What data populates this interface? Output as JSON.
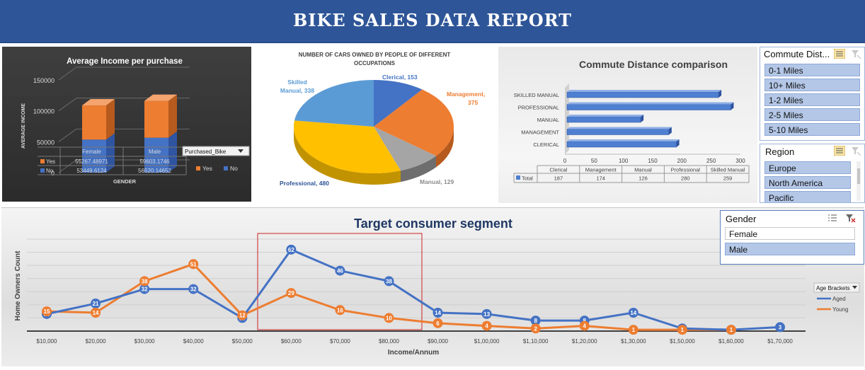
{
  "header": {
    "title": "BIKE SALES DATA REPORT"
  },
  "colors": {
    "banner": "#2e5597",
    "orange": "#ed7d31",
    "blue": "#4472c4",
    "gray": "#a5a5a5",
    "gold": "#ffc000",
    "lightblue": "#5b9bd5"
  },
  "chart_data": [
    {
      "id": "income",
      "type": "bar",
      "stacked": true,
      "title": "Average Income per purchase",
      "ylabel": "AVERAGE INCOME",
      "xlabel": "GENDER",
      "ylim": [
        0,
        150000
      ],
      "yticks": [
        "0",
        "50000",
        "100000",
        "150000"
      ],
      "categories": [
        "Female",
        "Male"
      ],
      "series": [
        {
          "name": "Yes",
          "values": [
            55267.48971,
            59603.1746
          ]
        },
        {
          "name": "No",
          "values": [
            53449.6124,
            56520.14652
          ]
        }
      ],
      "table": [
        {
          "label": "Yes",
          "values": [
            "55267.48971",
            "59603.1746"
          ]
        },
        {
          "label": "No",
          "values": [
            "53449.6124",
            "56520.14652"
          ]
        }
      ],
      "legend_title": "Purchased_Bike",
      "legend": [
        "Yes",
        "No"
      ]
    },
    {
      "id": "cars",
      "type": "pie",
      "title": [
        "NUMBER OF CARS OWNED BY PEOPLE OF DIFFERENT",
        "OCCUPATIONS"
      ],
      "slices": [
        {
          "name": "Clerical",
          "value": 153,
          "label": "Clerical, 153"
        },
        {
          "name": "Management",
          "value": 375,
          "label": [
            "Management,",
            "375"
          ]
        },
        {
          "name": "Manual",
          "value": 129,
          "label": "Manual, 129"
        },
        {
          "name": "Professional",
          "value": 480,
          "label": "Professional, 480"
        },
        {
          "name": "Skilled Manual",
          "value": 338,
          "label": [
            "Skilled",
            "Manual, 338"
          ]
        }
      ]
    },
    {
      "id": "commute",
      "type": "bar",
      "orientation": "horizontal",
      "title": "Commute Distance comparison",
      "xlim": [
        0,
        300
      ],
      "xticks": [
        "0",
        "50",
        "100",
        "150",
        "200",
        "250",
        "300"
      ],
      "categories": [
        "CLERICAL",
        "MANAGEMENT",
        "MANUAL",
        "PROFESSIONAL",
        "SKILLED MANUAL"
      ],
      "values": [
        187,
        174,
        126,
        280,
        259
      ],
      "table_headers": [
        "Clerical",
        "Management",
        "Manual",
        "Professional",
        "Skilled Manual"
      ],
      "table_label": "Total",
      "table_values": [
        "187",
        "174",
        "126",
        "280",
        "259"
      ]
    },
    {
      "id": "target",
      "type": "line",
      "title": "Target consumer segment",
      "xlabel": "Income/Annum",
      "ylabel": "Home Owners Count",
      "categories": [
        "$10,000",
        "$20,000",
        "$30,000",
        "$40,000",
        "$50,000",
        "$60,000",
        "$70,000",
        "$80,000",
        "$90,000",
        "$1,00,000",
        "$1,10,000",
        "$1,20,000",
        "$1,30,000",
        "$1,50,000",
        "$1,60,000",
        "$1,70,000"
      ],
      "ylim": [
        0,
        70
      ],
      "series": [
        {
          "name": "Aged",
          "values": [
            13,
            21,
            32,
            32,
            10,
            62,
            46,
            38,
            14,
            13,
            8,
            8,
            14,
            2,
            1,
            3
          ],
          "labels": [
            "13",
            "21",
            "32",
            "32",
            "10",
            "62",
            "46",
            "38",
            "14",
            "13",
            "8",
            "8",
            "14",
            "2",
            "1",
            "3"
          ]
        },
        {
          "name": "Young",
          "values": [
            15,
            14,
            38,
            51,
            12,
            29,
            16,
            10,
            6,
            4,
            2,
            4,
            1,
            1,
            1,
            null
          ],
          "labels": [
            "15",
            "14",
            "38",
            "51",
            "12",
            "29",
            "16",
            "10",
            "6",
            "4",
            "2",
            "4",
            "1",
            "1",
            "1",
            ""
          ]
        }
      ],
      "legend_title": "Age Brackets",
      "legend": [
        "Aged",
        "Young"
      ]
    }
  ],
  "slicers": {
    "commute": {
      "title": "Commute Dist...",
      "items": [
        "0-1 Miles",
        "10+ Miles",
        "1-2 Miles",
        "2-5 Miles",
        "5-10 Miles"
      ]
    },
    "region": {
      "title": "Region",
      "items": [
        "Europe",
        "North America",
        "Pacific"
      ]
    },
    "gender": {
      "title": "Gender",
      "items": [
        "Female",
        "Male"
      ]
    }
  }
}
